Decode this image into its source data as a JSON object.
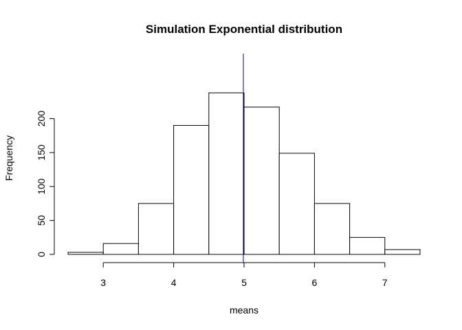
{
  "chart_data": {
    "type": "bar",
    "subtype": "histogram",
    "title": "Simulation Exponential distribution",
    "xlabel": "means",
    "ylabel": "Frequency",
    "bins": [
      {
        "start": 2.5,
        "end": 3.0,
        "count": 3
      },
      {
        "start": 3.0,
        "end": 3.5,
        "count": 16
      },
      {
        "start": 3.5,
        "end": 4.0,
        "count": 75
      },
      {
        "start": 4.0,
        "end": 4.5,
        "count": 190
      },
      {
        "start": 4.5,
        "end": 5.0,
        "count": 238
      },
      {
        "start": 5.0,
        "end": 5.5,
        "count": 217
      },
      {
        "start": 5.5,
        "end": 6.0,
        "count": 149
      },
      {
        "start": 6.0,
        "end": 6.5,
        "count": 75
      },
      {
        "start": 6.5,
        "end": 7.0,
        "count": 25
      },
      {
        "start": 7.0,
        "end": 7.5,
        "count": 7
      }
    ],
    "xlim": [
      2.5,
      7.5
    ],
    "ylim": [
      0,
      250
    ],
    "x_ticks": [
      "3",
      "4",
      "5",
      "6",
      "7"
    ],
    "y_ticks": [
      "0",
      "50",
      "100",
      "150",
      "200"
    ],
    "reference_line": {
      "x": 4.99,
      "color": "#00008b"
    },
    "bar_fill": "#ffffff",
    "bar_stroke": "#000000",
    "grid": false
  }
}
